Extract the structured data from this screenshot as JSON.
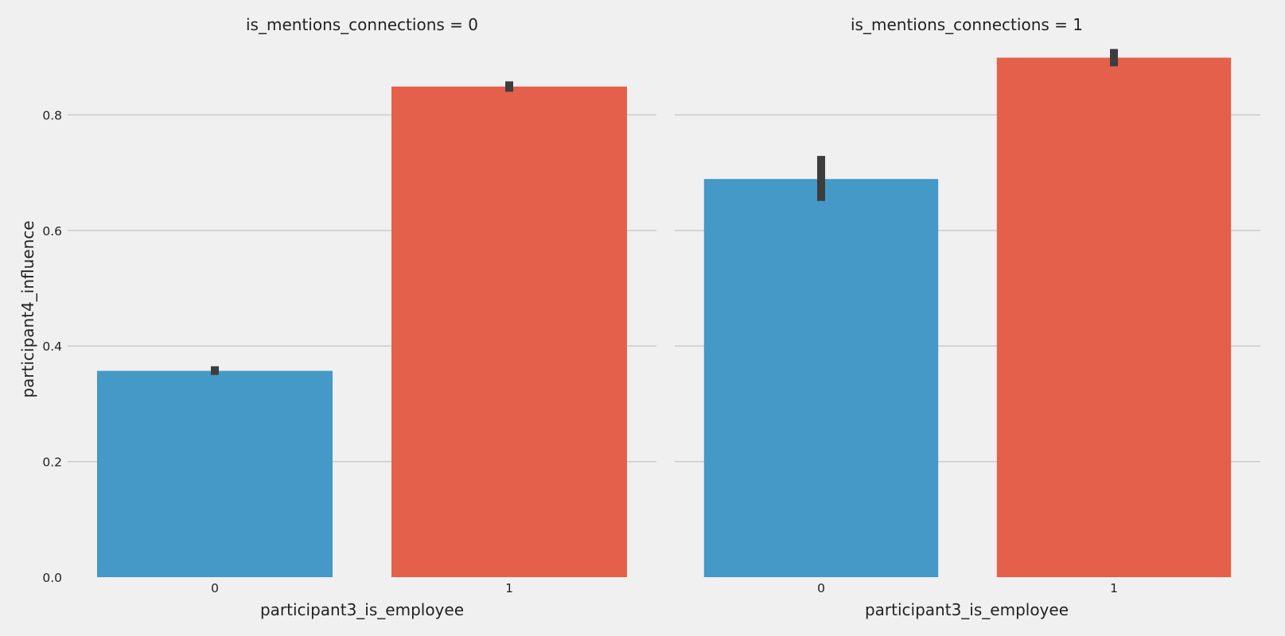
{
  "chart_data": {
    "type": "bar",
    "ylabel": "participant4_influence",
    "ylim": [
      0,
      0.93
    ],
    "yticks": [
      "0.0",
      "0.2",
      "0.4",
      "0.6",
      "0.8"
    ],
    "grid": true,
    "facets": [
      {
        "title": "is_mentions_connections = 0",
        "xlabel": "participant3_is_employee",
        "categories": [
          "0",
          "1"
        ],
        "values": [
          0.357,
          0.849
        ],
        "error_low": [
          0.35,
          0.84
        ],
        "error_high": [
          0.365,
          0.858
        ],
        "colors": [
          "#4599c6",
          "#e5604a"
        ]
      },
      {
        "title": "is_mentions_connections = 1",
        "xlabel": "participant3_is_employee",
        "categories": [
          "0",
          "1"
        ],
        "values": [
          0.689,
          0.899
        ],
        "error_low": [
          0.651,
          0.884
        ],
        "error_high": [
          0.729,
          0.914
        ],
        "colors": [
          "#4599c6",
          "#e5604a"
        ]
      }
    ]
  }
}
